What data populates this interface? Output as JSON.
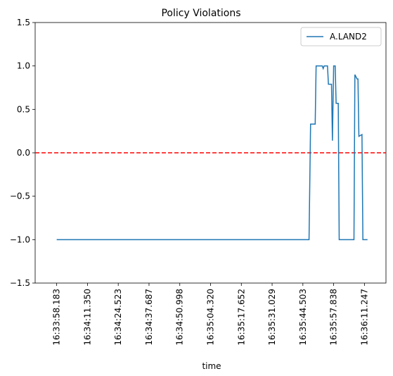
{
  "chart_data": {
    "type": "line",
    "title": "Policy Violations",
    "xlabel": "time",
    "ylabel": "",
    "ylim": [
      -1.5,
      1.5
    ],
    "yticks": [
      -1.5,
      -1.0,
      -0.5,
      0.0,
      0.5,
      1.0,
      1.5
    ],
    "ytick_labels": [
      "−1.5",
      "−1.0",
      "−0.5",
      "0.0",
      "0.5",
      "1.0",
      "1.5"
    ],
    "xlim": [
      -7,
      107
    ],
    "xticks": [
      0,
      10,
      20,
      30,
      40,
      50,
      60,
      70,
      80,
      90,
      100
    ],
    "xtick_labels": [
      "16:33:58.183",
      "16:34:11.350",
      "16:34:24.523",
      "16:34:37.687",
      "16:34:50.998",
      "16:35:04.320",
      "16:35:17.652",
      "16:35:31.029",
      "16:35:44.503",
      "16:35:57.838",
      "16:36:11.247"
    ],
    "grid": false,
    "legend": "upper right",
    "series": [
      {
        "name": "A.LAND2",
        "color": "#1f77b4",
        "x": [
          0,
          82,
          82.5,
          84,
          84.3,
          86.3,
          86.6,
          86.9,
          87.2,
          88,
          88.3,
          89.3,
          89.6,
          90,
          90.5,
          90.8,
          91.5,
          91.8,
          93,
          93.3,
          96.6,
          96.9,
          97.6,
          97.9,
          98.2,
          99.2,
          99.5,
          101
        ],
        "y": [
          -1,
          -1,
          0.33,
          0.33,
          1.0,
          1.0,
          0.97,
          1.0,
          1.0,
          1.0,
          0.79,
          0.79,
          0.14,
          1.0,
          1.0,
          0.57,
          0.57,
          -1,
          -1,
          -1,
          -1,
          0.9,
          0.85,
          0.85,
          0.19,
          0.21,
          -1,
          -1
        ]
      }
    ],
    "reference_line": {
      "y": 0.0,
      "color": "#ff0000",
      "style": "dashed"
    }
  }
}
